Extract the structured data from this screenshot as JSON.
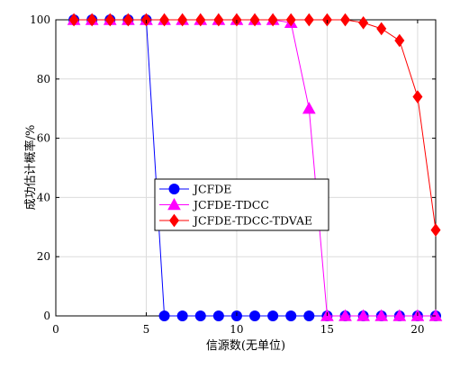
{
  "chart_data": {
    "type": "line",
    "title": "",
    "xlabel": "信源数(无单位)",
    "ylabel": "成功估计概率/%",
    "xlim": [
      0,
      21
    ],
    "ylim": [
      0,
      100
    ],
    "xticks": [
      0,
      5,
      10,
      15,
      20
    ],
    "yticks": [
      0,
      20,
      40,
      60,
      80,
      100
    ],
    "grid": true,
    "legend_position": "center-left",
    "x": [
      1,
      2,
      3,
      4,
      5,
      6,
      7,
      8,
      9,
      10,
      11,
      12,
      13,
      14,
      15,
      16,
      17,
      18,
      19,
      20,
      21
    ],
    "series": [
      {
        "name": "JCFDE",
        "color": "#0000ff",
        "marker": "circle",
        "values": [
          100,
          100,
          100,
          100,
          100,
          0,
          0,
          0,
          0,
          0,
          0,
          0,
          0,
          0,
          0,
          0,
          0,
          0,
          0,
          0,
          0
        ]
      },
      {
        "name": "JCFDE-TDCC",
        "color": "#ff00ff",
        "marker": "triangle",
        "values": [
          100,
          100,
          100,
          100,
          100,
          100,
          100,
          100,
          100,
          100,
          100,
          100,
          99,
          70,
          0,
          0,
          0,
          0,
          0,
          0,
          0
        ]
      },
      {
        "name": "JCFDE-TDCC-TDVAE",
        "color": "#ff0000",
        "marker": "diamond",
        "values": [
          100,
          100,
          100,
          100,
          100,
          100,
          100,
          100,
          100,
          100,
          100,
          100,
          100,
          100,
          100,
          100,
          99,
          97,
          93,
          74,
          29
        ]
      }
    ]
  }
}
